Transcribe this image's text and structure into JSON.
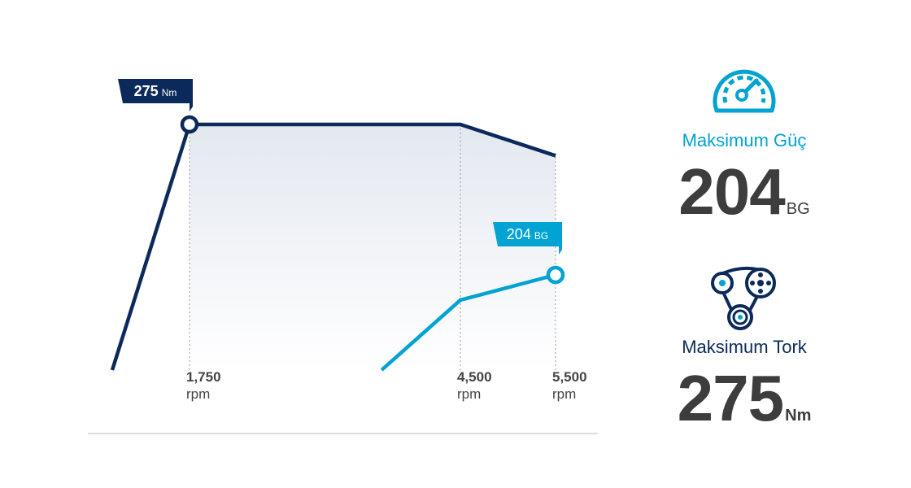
{
  "chart_data": {
    "type": "line",
    "xlabel": "",
    "ylabel": "",
    "x_ticks": [
      {
        "value": 1750,
        "label": "1,750",
        "unit": "rpm"
      },
      {
        "value": 4500,
        "label": "4,500",
        "unit": "rpm"
      },
      {
        "value": 5500,
        "label": "5,500",
        "unit": "rpm"
      }
    ],
    "series": [
      {
        "name": "torque",
        "color": "#0b2a5b",
        "points": [
          [
            1000,
            0
          ],
          [
            1750,
            275
          ],
          [
            4500,
            275
          ],
          [
            5500,
            240
          ]
        ],
        "peak": {
          "x": 1750,
          "y": 275,
          "value": "275",
          "unit": "Nm"
        }
      },
      {
        "name": "power",
        "color": "#00a3d1",
        "points": [
          [
            3700,
            0
          ],
          [
            4500,
            150
          ],
          [
            5500,
            204
          ]
        ],
        "peak": {
          "x": 5500,
          "y": 204,
          "value": "204",
          "unit": "BG"
        }
      }
    ]
  },
  "summary": {
    "power": {
      "icon": "speedometer-icon",
      "label": "Maksimum Güç",
      "value": "204",
      "unit": "BG",
      "color": "#00a3d1"
    },
    "torque": {
      "icon": "engine-belt-icon",
      "label": "Maksimum Tork",
      "value": "275",
      "unit": "Nm",
      "color": "#0b2a5b"
    }
  }
}
